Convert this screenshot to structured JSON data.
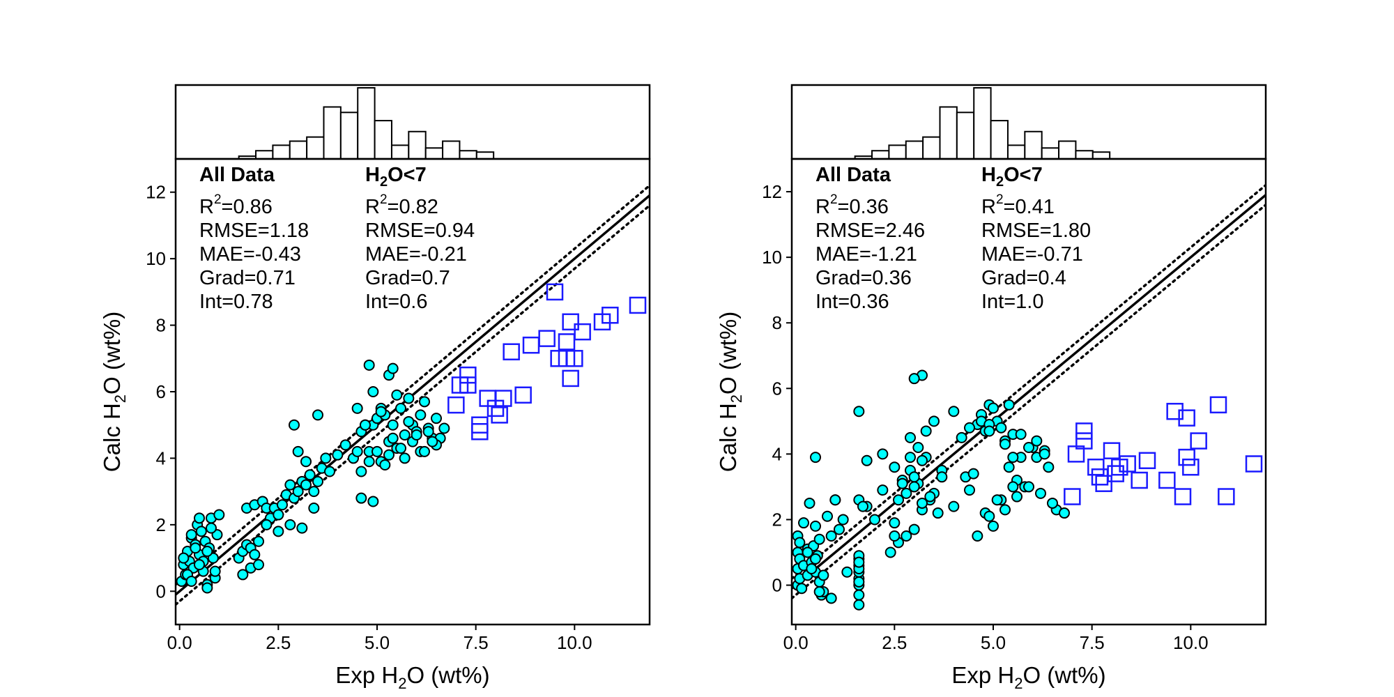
{
  "chart_data": [
    {
      "type": "scatter",
      "xlabel": "Exp H2O (wt%)",
      "ylabel": "Calc H2O (wt%)",
      "xlim": [
        -0.1,
        11.9
      ],
      "ylim": [
        -1,
        13
      ],
      "xticks": [
        "0.0",
        "2.5",
        "5.0",
        "7.5",
        "10.0"
      ],
      "yticks": [
        "0",
        "2",
        "4",
        "6",
        "8",
        "10",
        "12"
      ],
      "reference_lines": {
        "one_to_one": "solid",
        "band": "dotted",
        "band_offset": 0.3
      },
      "stats": {
        "all_data": {
          "heading": "All Data",
          "lines": [
            "=0.86",
            "RMSE=1.18",
            "MAE=-0.43",
            "Grad=0.71",
            "Int=0.78"
          ]
        },
        "subset": {
          "heading": "<7",
          "lines": [
            "=0.82",
            "RMSE=0.94",
            "MAE=-0.21",
            "Grad=0.7",
            "Int=0.6"
          ]
        }
      },
      "histogram": {
        "bin_width": 0.43,
        "start": 1.5,
        "counts": [
          2,
          6,
          10,
          13,
          16,
          38,
          34,
          52,
          28,
          10,
          20,
          8,
          13,
          6,
          5
        ]
      },
      "series": [
        {
          "marker": "filled-circle",
          "color": "#00ffff",
          "x": [
            0.05,
            0.1,
            0.15,
            0.2,
            0.25,
            0.3,
            0.35,
            0.4,
            0.45,
            0.5,
            0.55,
            0.6,
            0.65,
            0.7,
            0.75,
            0.8,
            0.85,
            0.9,
            0.95,
            1.0,
            0.1,
            0.2,
            0.3,
            0.4,
            0.5,
            0.6,
            0.7,
            0.8,
            0.3,
            0.5,
            0.7,
            0.9,
            1.5,
            1.6,
            1.7,
            1.8,
            1.9,
            2.0,
            1.6,
            1.8,
            2.0,
            1.7,
            1.9,
            2.1,
            2.2,
            2.3,
            2.4,
            2.5,
            2.6,
            2.7,
            2.8,
            2.9,
            3.0,
            3.1,
            3.2,
            3.3,
            3.4,
            3.5,
            3.6,
            3.7,
            3.8,
            4.0,
            4.2,
            4.4,
            4.5,
            4.6,
            4.7,
            4.8,
            4.9,
            5.0,
            5.1,
            5.2,
            5.3,
            5.4,
            5.5,
            5.6,
            5.7,
            5.8,
            5.9,
            6.0,
            6.1,
            6.2,
            6.3,
            6.4,
            6.5,
            6.6,
            6.7,
            5.1,
            5.3,
            5.5,
            5.7,
            5.9,
            6.1,
            6.3,
            6.5,
            4.6,
            4.8,
            5.0,
            5.2,
            5.4,
            5.6,
            5.8,
            6.0,
            6.2,
            6.4,
            4.5,
            4.7,
            4.9,
            5.1,
            5.3,
            2.9,
            3.0,
            3.2,
            3.5,
            4.6,
            4.9,
            4.8,
            5.4,
            2.2,
            2.5,
            2.8,
            3.1,
            3.4
          ],
          "y": [
            0.3,
            0.8,
            0.5,
            1.2,
            0.9,
            1.6,
            0.7,
            1.4,
            2.0,
            1.1,
            1.8,
            0.6,
            1.5,
            0.2,
            1.3,
            2.2,
            1.0,
            0.4,
            1.7,
            2.3,
            1.0,
            0.5,
            1.7,
            1.3,
            2.2,
            0.9,
            0.1,
            1.9,
            0.3,
            0.8,
            1.2,
            0.6,
            1.0,
            1.2,
            1.4,
            1.3,
            1.1,
            1.5,
            0.5,
            0.7,
            0.8,
            2.5,
            2.6,
            2.7,
            2.5,
            2.2,
            2.5,
            2.3,
            2.6,
            2.9,
            3.2,
            2.8,
            3.0,
            3.3,
            3.2,
            3.5,
            3.0,
            3.3,
            3.7,
            4.0,
            3.6,
            4.1,
            4.4,
            4.0,
            4.2,
            4.8,
            5.0,
            4.2,
            5.0,
            5.2,
            5.5,
            5.3,
            4.5,
            5.0,
            5.9,
            5.5,
            4.7,
            5.8,
            5.0,
            4.8,
            5.3,
            5.7,
            4.9,
            4.6,
            5.2,
            4.6,
            4.9,
            3.9,
            4.1,
            4.3,
            4.0,
            4.5,
            4.2,
            4.8,
            4.4,
            3.6,
            3.9,
            4.2,
            3.8,
            4.6,
            4.3,
            5.1,
            4.7,
            4.2,
            4.5,
            5.5,
            5.0,
            6.0,
            5.4,
            6.5,
            5.0,
            4.2,
            3.9,
            5.3,
            2.8,
            2.7,
            6.8,
            6.7,
            2.0,
            1.8,
            2.0,
            1.9,
            2.5
          ]
        },
        {
          "marker": "open-square",
          "color": "#1a1aff",
          "x": [
            7.0,
            7.1,
            7.3,
            7.3,
            7.6,
            7.6,
            7.8,
            8.0,
            8.1,
            8.2,
            8.4,
            8.7,
            8.9,
            9.3,
            9.5,
            9.6,
            9.8,
            9.8,
            9.9,
            9.9,
            10.0,
            10.2,
            10.7,
            10.9,
            11.6
          ],
          "y": [
            5.6,
            6.2,
            6.2,
            6.5,
            5.0,
            4.8,
            5.8,
            5.5,
            5.3,
            5.8,
            7.2,
            5.9,
            7.4,
            7.6,
            9.0,
            7.0,
            7.5,
            7.0,
            6.4,
            8.1,
            7.0,
            7.8,
            8.1,
            8.3,
            8.6
          ]
        }
      ]
    },
    {
      "type": "scatter",
      "xlabel": "Exp H2O (wt%)",
      "ylabel": "Calc H2O (wt%)",
      "xlim": [
        -0.1,
        11.9
      ],
      "ylim": [
        -1.2,
        13
      ],
      "xticks": [
        "0.0",
        "2.5",
        "5.0",
        "7.5",
        "10.0"
      ],
      "yticks": [
        "0",
        "2",
        "4",
        "6",
        "8",
        "10",
        "12"
      ],
      "reference_lines": {
        "one_to_one": "solid",
        "band": "dotted",
        "band_offset": 0.3
      },
      "stats": {
        "all_data": {
          "heading": "All Data",
          "lines": [
            "=0.36",
            "RMSE=2.46",
            "MAE=-1.21",
            "Grad=0.36",
            "Int=0.36"
          ]
        },
        "subset": {
          "heading": "<7",
          "lines": [
            "=0.41",
            "RMSE=1.80",
            "MAE=-0.71",
            "Grad=0.4",
            "Int=1.0"
          ]
        }
      },
      "histogram": {
        "bin_width": 0.43,
        "start": 1.5,
        "counts": [
          2,
          6,
          10,
          13,
          16,
          38,
          34,
          52,
          28,
          10,
          20,
          8,
          13,
          6,
          5
        ]
      },
      "series": [
        {
          "marker": "filled-circle",
          "color": "#00ffff",
          "x": [
            0.05,
            0.05,
            0.05,
            0.05,
            0.1,
            0.1,
            0.1,
            0.15,
            0.2,
            0.2,
            0.3,
            0.3,
            0.35,
            0.4,
            0.45,
            0.5,
            0.5,
            0.55,
            0.6,
            0.6,
            0.65,
            0.7,
            0.8,
            0.9,
            1.0,
            1.1,
            1.2,
            0.3,
            0.4,
            0.5,
            0.6,
            0.7,
            1.6,
            1.6,
            1.6,
            1.6,
            1.6,
            1.6,
            1.6,
            1.6,
            1.6,
            1.6,
            1.6,
            1.6,
            1.8,
            2.0,
            2.2,
            2.4,
            2.6,
            2.8,
            3.0,
            3.2,
            3.4,
            3.6,
            2.9,
            3.1,
            3.3,
            3.5,
            3.7,
            2.7,
            2.9,
            3.1,
            3.3,
            2.5,
            2.8,
            3.0,
            3.2,
            3.5,
            3.7,
            4.0,
            4.2,
            4.3,
            4.4,
            4.5,
            4.6,
            4.7,
            4.8,
            4.9,
            5.0,
            5.1,
            5.2,
            5.3,
            5.4,
            5.5,
            5.6,
            5.8,
            6.0,
            6.2,
            6.4,
            6.6,
            6.8,
            5.7,
            5.9,
            6.1,
            6.3,
            6.5,
            4.8,
            5.0,
            5.2,
            5.4,
            4.6,
            4.9,
            5.1,
            5.3,
            5.5,
            5.7,
            5.9,
            6.1,
            6.3,
            2.5,
            2.6,
            2.7,
            2.9,
            3.0,
            3.2,
            3.4,
            4.0,
            4.4,
            4.7,
            4.9,
            4.9,
            5.3,
            5.6,
            5.5,
            3.2,
            3.0,
            0.9,
            1.0,
            0.5,
            1.7,
            2.2,
            1.6,
            1.3,
            1.8,
            2.5
          ],
          "y": [
            0.0,
            0.5,
            1.0,
            1.5,
            0.2,
            0.8,
            1.3,
            -0.1,
            0.6,
            1.9,
            0.3,
            1.1,
            2.5,
            0.7,
            1.2,
            0.4,
            1.8,
            0.9,
            0.1,
            1.4,
            -0.3,
            -0.2,
            2.1,
            1.5,
            2.6,
            1.7,
            2.0,
            1.0,
            0.5,
            0.8,
            -0.2,
            0.3,
            -0.6,
            0.0,
            0.2,
            0.4,
            0.6,
            0.8,
            0.9,
            -0.3,
            0.1,
            0.5,
            0.7,
            2.6,
            2.4,
            2.0,
            2.9,
            1.0,
            1.3,
            1.5,
            1.7,
            2.3,
            2.6,
            2.2,
            4.5,
            3.1,
            4.7,
            5.0,
            3.5,
            3.2,
            3.5,
            4.2,
            3.9,
            3.6,
            2.8,
            3.0,
            2.5,
            2.8,
            3.3,
            2.4,
            4.5,
            3.3,
            2.9,
            3.4,
            4.9,
            5.2,
            4.7,
            5.5,
            5.4,
            5.0,
            4.8,
            4.4,
            5.5,
            4.6,
            3.2,
            3.0,
            4.2,
            2.8,
            3.6,
            2.3,
            2.2,
            4.6,
            3.0,
            3.9,
            4.1,
            2.5,
            2.2,
            1.8,
            2.6,
            3.6,
            1.5,
            2.1,
            2.6,
            2.3,
            3.0,
            3.9,
            4.2,
            4.4,
            4.0,
            1.5,
            2.6,
            3.1,
            3.9,
            3.3,
            3.8,
            2.7,
            5.3,
            4.8,
            5.0,
            4.9,
            4.7,
            4.3,
            2.7,
            3.9,
            6.4,
            6.3,
            -0.4,
            2.6,
            3.9,
            2.4,
            4.0,
            5.3,
            0.4,
            3.8,
            1.9
          ]
        },
        {
          "marker": "open-square",
          "color": "#1a1aff",
          "x": [
            7.0,
            7.1,
            7.3,
            7.3,
            7.6,
            7.7,
            7.8,
            8.0,
            8.1,
            8.2,
            8.4,
            8.7,
            8.9,
            9.4,
            9.6,
            9.8,
            9.9,
            9.9,
            10.0,
            10.2,
            10.7,
            10.9,
            11.6
          ],
          "y": [
            2.7,
            4.0,
            4.4,
            4.7,
            3.6,
            3.3,
            3.1,
            4.1,
            3.4,
            3.6,
            3.7,
            3.2,
            3.8,
            3.2,
            5.3,
            2.7,
            3.9,
            5.1,
            3.6,
            4.4,
            5.5,
            2.7,
            3.7
          ]
        }
      ]
    }
  ]
}
